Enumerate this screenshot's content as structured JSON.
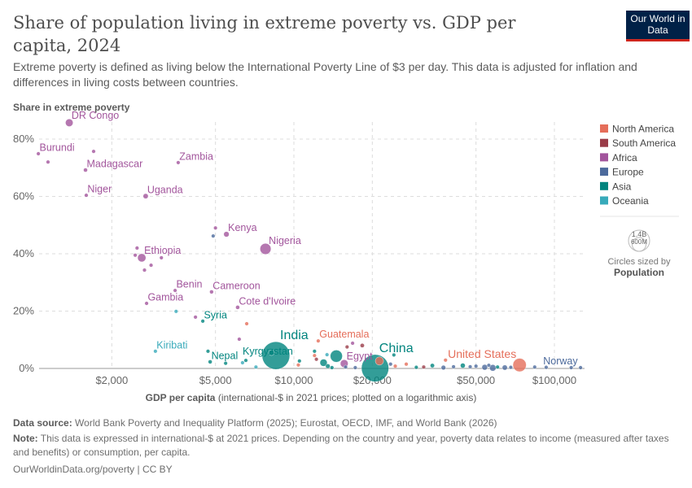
{
  "header": {
    "title": "Share of population living in extreme poverty vs. GDP per capita, 2024",
    "subtitle": "Extreme poverty is defined as living below the International Poverty Line of $3 per day. This data is adjusted for inflation and differences in living costs between countries.",
    "logo": "Our World in Data"
  },
  "chart_data": {
    "type": "scatter",
    "ylabel": "Share in extreme poverty",
    "xlabel_bold": "GDP per capita",
    "xlabel_rest": " (international-$ in 2021 prices; plotted on a logarithmic axis)",
    "x_scale": "log",
    "xlim": [
      1030,
      130000
    ],
    "ylim": [
      0,
      86
    ],
    "x_ticks": [
      {
        "v": 2000,
        "label": "$2,000"
      },
      {
        "v": 5000,
        "label": "$5,000"
      },
      {
        "v": 10000,
        "label": "$10,000"
      },
      {
        "v": 20000,
        "label": "$20,000"
      },
      {
        "v": 50000,
        "label": "$50,000"
      },
      {
        "v": 100000,
        "label": "$100,000"
      }
    ],
    "y_ticks": [
      {
        "v": 0,
        "label": "0%"
      },
      {
        "v": 20,
        "label": "20%"
      },
      {
        "v": 40,
        "label": "40%"
      },
      {
        "v": 60,
        "label": "60%"
      },
      {
        "v": 80,
        "label": "80%"
      }
    ],
    "grid": true,
    "legend_placement": "right",
    "colors": {
      "North America": "#e56e5a",
      "South America": "#9a3c48",
      "Africa": "#a2559c",
      "Europe": "#4c6a9c",
      "Asia": "#00847e",
      "Oceania": "#38aaba"
    },
    "legend": [
      "North America",
      "South America",
      "Africa",
      "Europe",
      "Asia",
      "Oceania"
    ],
    "size_legend": {
      "title": "Circles sized by",
      "variable": "Population",
      "values": [
        {
          "v": 1400000000,
          "label": "1.4B"
        },
        {
          "v": 600000000,
          "label": "600M"
        }
      ]
    },
    "points": [
      {
        "label": "DR Congo",
        "x": 1373,
        "y": 85.7,
        "r": "Africa",
        "pop": 110000000
      },
      {
        "label": "Burundi",
        "x": 1045,
        "y": 74.9,
        "r": "Africa",
        "pop": 14000000
      },
      {
        "label": "",
        "x": 1138,
        "y": 72,
        "r": "Africa",
        "pop": 6000000
      },
      {
        "label": "",
        "x": 1703,
        "y": 75.7,
        "r": "Africa",
        "pop": 6000000
      },
      {
        "label": "Madagascar",
        "x": 1585,
        "y": 69.2,
        "r": "Africa",
        "pop": 31000000
      },
      {
        "label": "Zambia",
        "x": 3597,
        "y": 71.8,
        "r": "Africa",
        "pop": 21000000
      },
      {
        "label": "Niger",
        "x": 1596,
        "y": 60.4,
        "r": "Africa",
        "pop": 27000000
      },
      {
        "label": "Uganda",
        "x": 2698,
        "y": 60.1,
        "r": "Africa",
        "pop": 50000000
      },
      {
        "label": "Kenya",
        "x": 5508,
        "y": 46.8,
        "r": "Africa",
        "pop": 56000000
      },
      {
        "label": "",
        "x": 5000,
        "y": 49,
        "r": "Africa",
        "pop": 5000000
      },
      {
        "label": "",
        "x": 4900,
        "y": 46.2,
        "r": "Europe",
        "pop": 5000000
      },
      {
        "label": "Nigeria",
        "x": 7780,
        "y": 41.7,
        "r": "Africa",
        "pop": 230000000
      },
      {
        "label": "Ethiopia",
        "x": 2606,
        "y": 38.6,
        "r": "Africa",
        "pop": 130000000
      },
      {
        "label": "",
        "x": 2500,
        "y": 42,
        "r": "Africa",
        "pop": 12000000
      },
      {
        "label": "",
        "x": 2460,
        "y": 39.5,
        "r": "Africa",
        "pop": 8000000
      },
      {
        "label": "",
        "x": 2830,
        "y": 36,
        "r": "Africa",
        "pop": 18000000
      },
      {
        "label": "",
        "x": 2670,
        "y": 34.3,
        "r": "Africa",
        "pop": 6000000
      },
      {
        "label": "",
        "x": 3100,
        "y": 38.6,
        "r": "Africa",
        "pop": 5000000
      },
      {
        "label": "Benin",
        "x": 3500,
        "y": 27.2,
        "r": "Africa",
        "pop": 14000000
      },
      {
        "label": "Cameroon",
        "x": 4830,
        "y": 26.7,
        "r": "Africa",
        "pop": 29000000
      },
      {
        "label": "Gambia",
        "x": 2720,
        "y": 22.7,
        "r": "Africa",
        "pop": 3000000
      },
      {
        "label": "",
        "x": 3530,
        "y": 19.9,
        "r": "Oceania",
        "pop": 5000000
      },
      {
        "label": "",
        "x": 4190,
        "y": 17.9,
        "r": "Africa",
        "pop": 8000000
      },
      {
        "label": "Syria",
        "x": 4470,
        "y": 16.5,
        "r": "Asia",
        "pop": 24000000
      },
      {
        "label": "Cote d'Ivoire",
        "x": 6083,
        "y": 21.3,
        "r": "Africa",
        "pop": 31000000
      },
      {
        "label": "",
        "x": 6590,
        "y": 15.6,
        "r": "North America",
        "pop": 6000000
      },
      {
        "label": "",
        "x": 6170,
        "y": 10.2,
        "r": "Africa",
        "pop": 5000000
      },
      {
        "label": "Kiribati",
        "x": 2940,
        "y": 6,
        "r": "Oceania",
        "pop": 130000
      },
      {
        "label": "India",
        "x": 8530,
        "y": 4.5,
        "r": "Asia",
        "pop": 1450000000
      },
      {
        "label": "",
        "x": 8200,
        "y": 5.5,
        "r": "Asia",
        "pop": 60000000
      },
      {
        "label": "Nepal",
        "x": 4770,
        "y": 2.3,
        "r": "Asia",
        "pop": 30000000
      },
      {
        "label": "",
        "x": 4680,
        "y": 6,
        "r": "Asia",
        "pop": 3000000
      },
      {
        "label": "",
        "x": 5470,
        "y": 1.8,
        "r": "Asia",
        "pop": 6000000
      },
      {
        "label": "Kyrgyzstan",
        "x": 6540,
        "y": 2.8,
        "r": "Asia",
        "pop": 7000000
      },
      {
        "label": "",
        "x": 6350,
        "y": 2,
        "r": "Oceania",
        "pop": 5000000
      },
      {
        "label": "",
        "x": 7150,
        "y": 0.5,
        "r": "Oceania",
        "pop": 5000000
      },
      {
        "label": "",
        "x": 10500,
        "y": 2.6,
        "r": "Asia",
        "pop": 20000000
      },
      {
        "label": "",
        "x": 10400,
        "y": 1.2,
        "r": "North America",
        "pop": 8000000
      },
      {
        "label": "Guatemala",
        "x": 12400,
        "y": 9.6,
        "r": "North America",
        "pop": 18000000
      },
      {
        "label": "",
        "x": 12000,
        "y": 6,
        "r": "Asia",
        "pop": 5000000
      },
      {
        "label": "",
        "x": 12000,
        "y": 4.5,
        "r": "North America",
        "pop": 5000000
      },
      {
        "label": "",
        "x": 12200,
        "y": 3.2,
        "r": "South America",
        "pop": 7000000
      },
      {
        "label": "",
        "x": 13000,
        "y": 2,
        "r": "Asia",
        "pop": 100000000
      },
      {
        "label": "",
        "x": 13500,
        "y": 0.8,
        "r": "Asia",
        "pop": 40000000
      },
      {
        "label": "",
        "x": 14550,
        "y": 4.3,
        "r": "Asia",
        "pop": 280000000
      },
      {
        "label": "",
        "x": 14000,
        "y": 0.3,
        "r": "Asia",
        "pop": 8000000
      },
      {
        "label": "",
        "x": 13400,
        "y": 4.8,
        "r": "Oceania",
        "pop": 5000000
      },
      {
        "label": "Egypt",
        "x": 15600,
        "y": 1.7,
        "r": "Africa",
        "pop": 116000000
      },
      {
        "label": "",
        "x": 16800,
        "y": 8.8,
        "r": "Africa",
        "pop": 6000000
      },
      {
        "label": "",
        "x": 18300,
        "y": 8,
        "r": "South America",
        "pop": 34000000
      },
      {
        "label": "",
        "x": 16000,
        "y": 7.5,
        "r": "South America",
        "pop": 5000000
      },
      {
        "label": "",
        "x": 15800,
        "y": 0.5,
        "r": "Europe",
        "pop": 12000000
      },
      {
        "label": "",
        "x": 17200,
        "y": 0.3,
        "r": "Europe",
        "pop": 8000000
      },
      {
        "label": "China",
        "x": 20500,
        "y": 0.1,
        "r": "Asia",
        "pop": 1410000000
      },
      {
        "label": "",
        "x": 21300,
        "y": 2.6,
        "r": "North America",
        "pop": 130000000
      },
      {
        "label": "",
        "x": 24200,
        "y": 4.7,
        "r": "Asia",
        "pop": 5000000
      },
      {
        "label": "",
        "x": 23500,
        "y": 1.5,
        "r": "Europe",
        "pop": 7000000
      },
      {
        "label": "",
        "x": 24500,
        "y": 0.8,
        "r": "North America",
        "pop": 6000000
      },
      {
        "label": "",
        "x": 27000,
        "y": 1.5,
        "r": "North America",
        "pop": 5000000
      },
      {
        "label": "",
        "x": 29500,
        "y": 0.4,
        "r": "Asia",
        "pop": 10000000
      },
      {
        "label": "",
        "x": 31500,
        "y": 0.5,
        "r": "South America",
        "pop": 8000000
      },
      {
        "label": "",
        "x": 34000,
        "y": 1,
        "r": "Asia",
        "pop": 35000000
      },
      {
        "label": "",
        "x": 37500,
        "y": 0.3,
        "r": "Europe",
        "pop": 40000000
      },
      {
        "label": "",
        "x": 38200,
        "y": 2.9,
        "r": "North America",
        "pop": 5000000
      },
      {
        "label": "",
        "x": 41000,
        "y": 0.6,
        "r": "Europe",
        "pop": 6000000
      },
      {
        "label": "",
        "x": 44500,
        "y": 1,
        "r": "Asia",
        "pop": 45000000
      },
      {
        "label": "",
        "x": 47500,
        "y": 0.6,
        "r": "Europe",
        "pop": 10000000
      },
      {
        "label": "",
        "x": 50000,
        "y": 0.8,
        "r": "Europe",
        "pop": 20000000
      },
      {
        "label": "",
        "x": 54000,
        "y": 0.4,
        "r": "Europe",
        "pop": 60000000
      },
      {
        "label": "",
        "x": 56000,
        "y": 1.1,
        "r": "Europe",
        "pop": 10000000
      },
      {
        "label": "",
        "x": 58000,
        "y": 0.2,
        "r": "Europe",
        "pop": 80000000
      },
      {
        "label": "",
        "x": 60500,
        "y": 0.5,
        "r": "Asia",
        "pop": 6000000
      },
      {
        "label": "",
        "x": 64500,
        "y": 0.3,
        "r": "Europe",
        "pop": 50000000
      },
      {
        "label": "",
        "x": 68000,
        "y": 0.4,
        "r": "Europe",
        "pop": 8000000
      },
      {
        "label": "United States",
        "x": 73500,
        "y": 1.2,
        "r": "North America",
        "pop": 340000000
      },
      {
        "label": "",
        "x": 84000,
        "y": 0.5,
        "r": "Europe",
        "pop": 6000000
      },
      {
        "label": "",
        "x": 93000,
        "y": 0.4,
        "r": "Europe",
        "pop": 5000000
      },
      {
        "label": "Norway",
        "x": 116000,
        "y": 0.3,
        "r": "Europe",
        "pop": 5500000
      },
      {
        "label": "",
        "x": 126000,
        "y": 0.3,
        "r": "Europe",
        "pop": 5000000
      }
    ]
  },
  "footer": {
    "source_label": "Data source:",
    "source": " World Bank Poverty and Inequality Platform (2025); Eurostat, OECD, IMF, and World Bank (2026)",
    "note_label": "Note:",
    "note": " This data is expressed in international-$ at 2021 prices. Depending on the country and year, poverty data relates to income (measured after taxes and benefits) or consumption, per capita.",
    "credit": "OurWorldinData.org/poverty | CC BY"
  }
}
